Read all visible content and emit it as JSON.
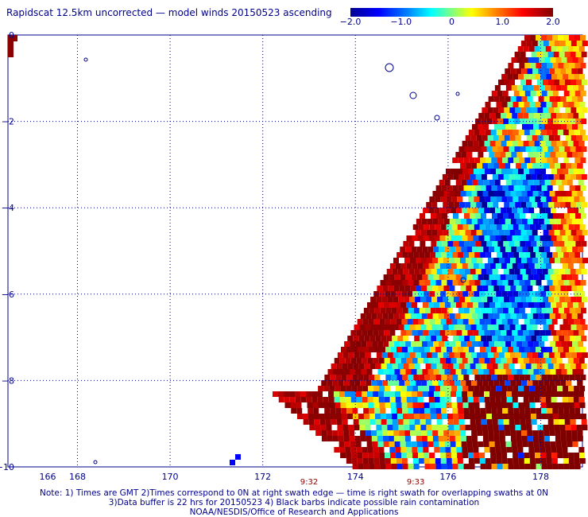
{
  "title": "Rapidscat 12.5km uncorrected — model winds 20150523 ascending",
  "colorbar": {
    "ticks": [
      {
        "value": -2.0,
        "label": "−2.0"
      },
      {
        "value": -1.0,
        "label": "−1.0"
      },
      {
        "value": 0,
        "label": "0"
      },
      {
        "value": 1.0,
        "label": "1.0"
      },
      {
        "value": 2.0,
        "label": "2.0"
      }
    ],
    "min": -2.0,
    "max": 2.0
  },
  "map": {
    "lon_range": [
      166.5,
      178.9
    ],
    "lat_range": [
      -10,
      0
    ],
    "lon_ticks": [
      {
        "value": 166,
        "label": "166"
      },
      {
        "value": 168,
        "label": "168"
      },
      {
        "value": 170,
        "label": "170"
      },
      {
        "value": 172,
        "label": "172"
      },
      {
        "value": 174,
        "label": "174"
      },
      {
        "value": 176,
        "label": "176"
      },
      {
        "value": 178,
        "label": "178"
      }
    ],
    "lat_ticks": [
      {
        "value": 0,
        "label": "0"
      },
      {
        "value": -2,
        "label": "−2"
      },
      {
        "value": -4,
        "label": "−4"
      },
      {
        "value": -6,
        "label": "−6"
      },
      {
        "value": -8,
        "label": "−8"
      },
      {
        "value": -10,
        "label": "−10"
      }
    ],
    "time_labels": [
      {
        "lon": 173.0,
        "label": "9:32"
      },
      {
        "lon": 175.3,
        "label": "9:33"
      }
    ],
    "colors": {
      "dark_red": "#8b0000",
      "grid": "#00008b"
    }
  },
  "notes": [
    "Note: 1) Times are GMT 2)Times correspond to 0N at right swath edge — time is right swath for overlapping swaths at 0N",
    "3)Data buffer is 22 hrs for 20150523 4) Black barbs indicate possible rain contamination",
    "NOAA/NESDIS/Office of Research and Applications"
  ]
}
